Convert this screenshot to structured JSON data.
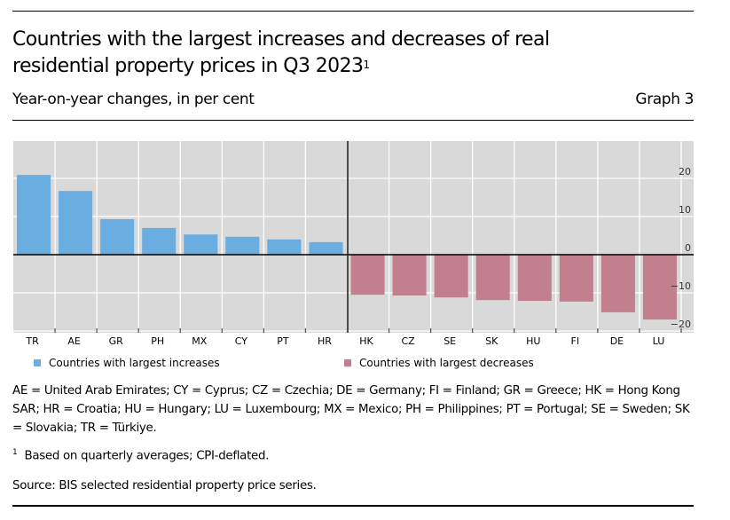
{
  "header": {
    "title": "Countries with the largest increases and decreases of real residential property prices in Q3 2023",
    "title_footnote_marker": "1",
    "subtitle": "Year-on-year changes, in per cent",
    "graph_number": "Graph 3"
  },
  "colors": {
    "increase": "#6aade0",
    "decrease": "#c27f8e",
    "plot_background": "#d9d9d9",
    "gridline": "#ffffff"
  },
  "chart_data": {
    "type": "bar",
    "title": "Countries with the largest increases and decreases of real residential property prices in Q3 2023",
    "subtitle": "Year-on-year changes, in per cent",
    "xlabel": "",
    "ylabel": "",
    "ylim": [
      -20.5,
      29
    ],
    "yticks": [
      20,
      10,
      0,
      -10,
      -20
    ],
    "ytick_labels": [
      "20",
      "10",
      "0",
      "−10",
      "−20"
    ],
    "y_axis_side": "right",
    "grid": true,
    "legend_position": "bottom",
    "categories": [
      "TR",
      "AE",
      "GR",
      "PH",
      "MX",
      "CY",
      "PT",
      "HR",
      "HK",
      "CZ",
      "SE",
      "SK",
      "HU",
      "FI",
      "DE",
      "LU"
    ],
    "series": [
      {
        "name": "Countries with largest increases",
        "color": "#6aade0",
        "categories": [
          "TR",
          "AE",
          "GR",
          "PH",
          "MX",
          "CY",
          "PT",
          "HR"
        ],
        "values": [
          20.9,
          16.7,
          9.3,
          7.0,
          5.3,
          4.7,
          4.0,
          3.3
        ]
      },
      {
        "name": "Countries with largest decreases",
        "color": "#c27f8e",
        "categories": [
          "HK",
          "CZ",
          "SE",
          "SK",
          "HU",
          "FI",
          "DE",
          "LU"
        ],
        "values": [
          -10.5,
          -10.7,
          -11.2,
          -11.9,
          -12.1,
          -12.3,
          -15.1,
          -17.0
        ]
      }
    ]
  },
  "legend": {
    "increase_label": "Countries with largest increases",
    "decrease_label": "Countries with largest decreases"
  },
  "notes": {
    "abbreviations": "AE = United Arab Emirates; CY = Cyprus; CZ = Czechia; DE = Germany; FI = Finland; GR = Greece; HK = Hong Kong SAR; HR = Croatia; HU = Hungary; LU = Luxembourg; MX = Mexico; PH = Philippines; PT = Portugal; SE = Sweden; SK = Slovakia; TR = Türkiye.",
    "footnote_marker": "1",
    "footnote": "Based on quarterly averages; CPI-deflated.",
    "source": "Source: BIS selected residential property price series."
  }
}
